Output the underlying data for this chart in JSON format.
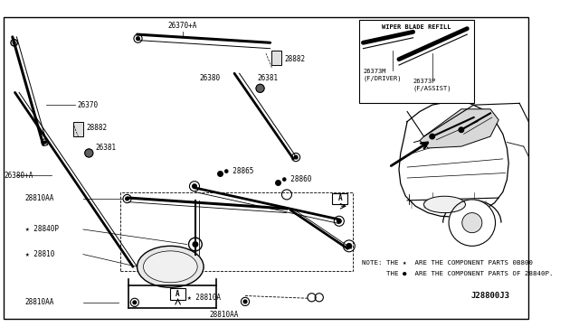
{
  "bg_color": "#ffffff",
  "border_color": "#000000",
  "fig_width": 6.4,
  "fig_height": 3.72,
  "dpi": 100,
  "note_line1": "NOTE: THE ★  ARE THE COMPONENT PARTS 0B800",
  "note_line2": "      THE ●  ARE THE COMPONENT PARTS OF 28840P.",
  "catalog_number": "J28800J3",
  "wiper_blade_refill": "WIPER BLADE REFILL"
}
